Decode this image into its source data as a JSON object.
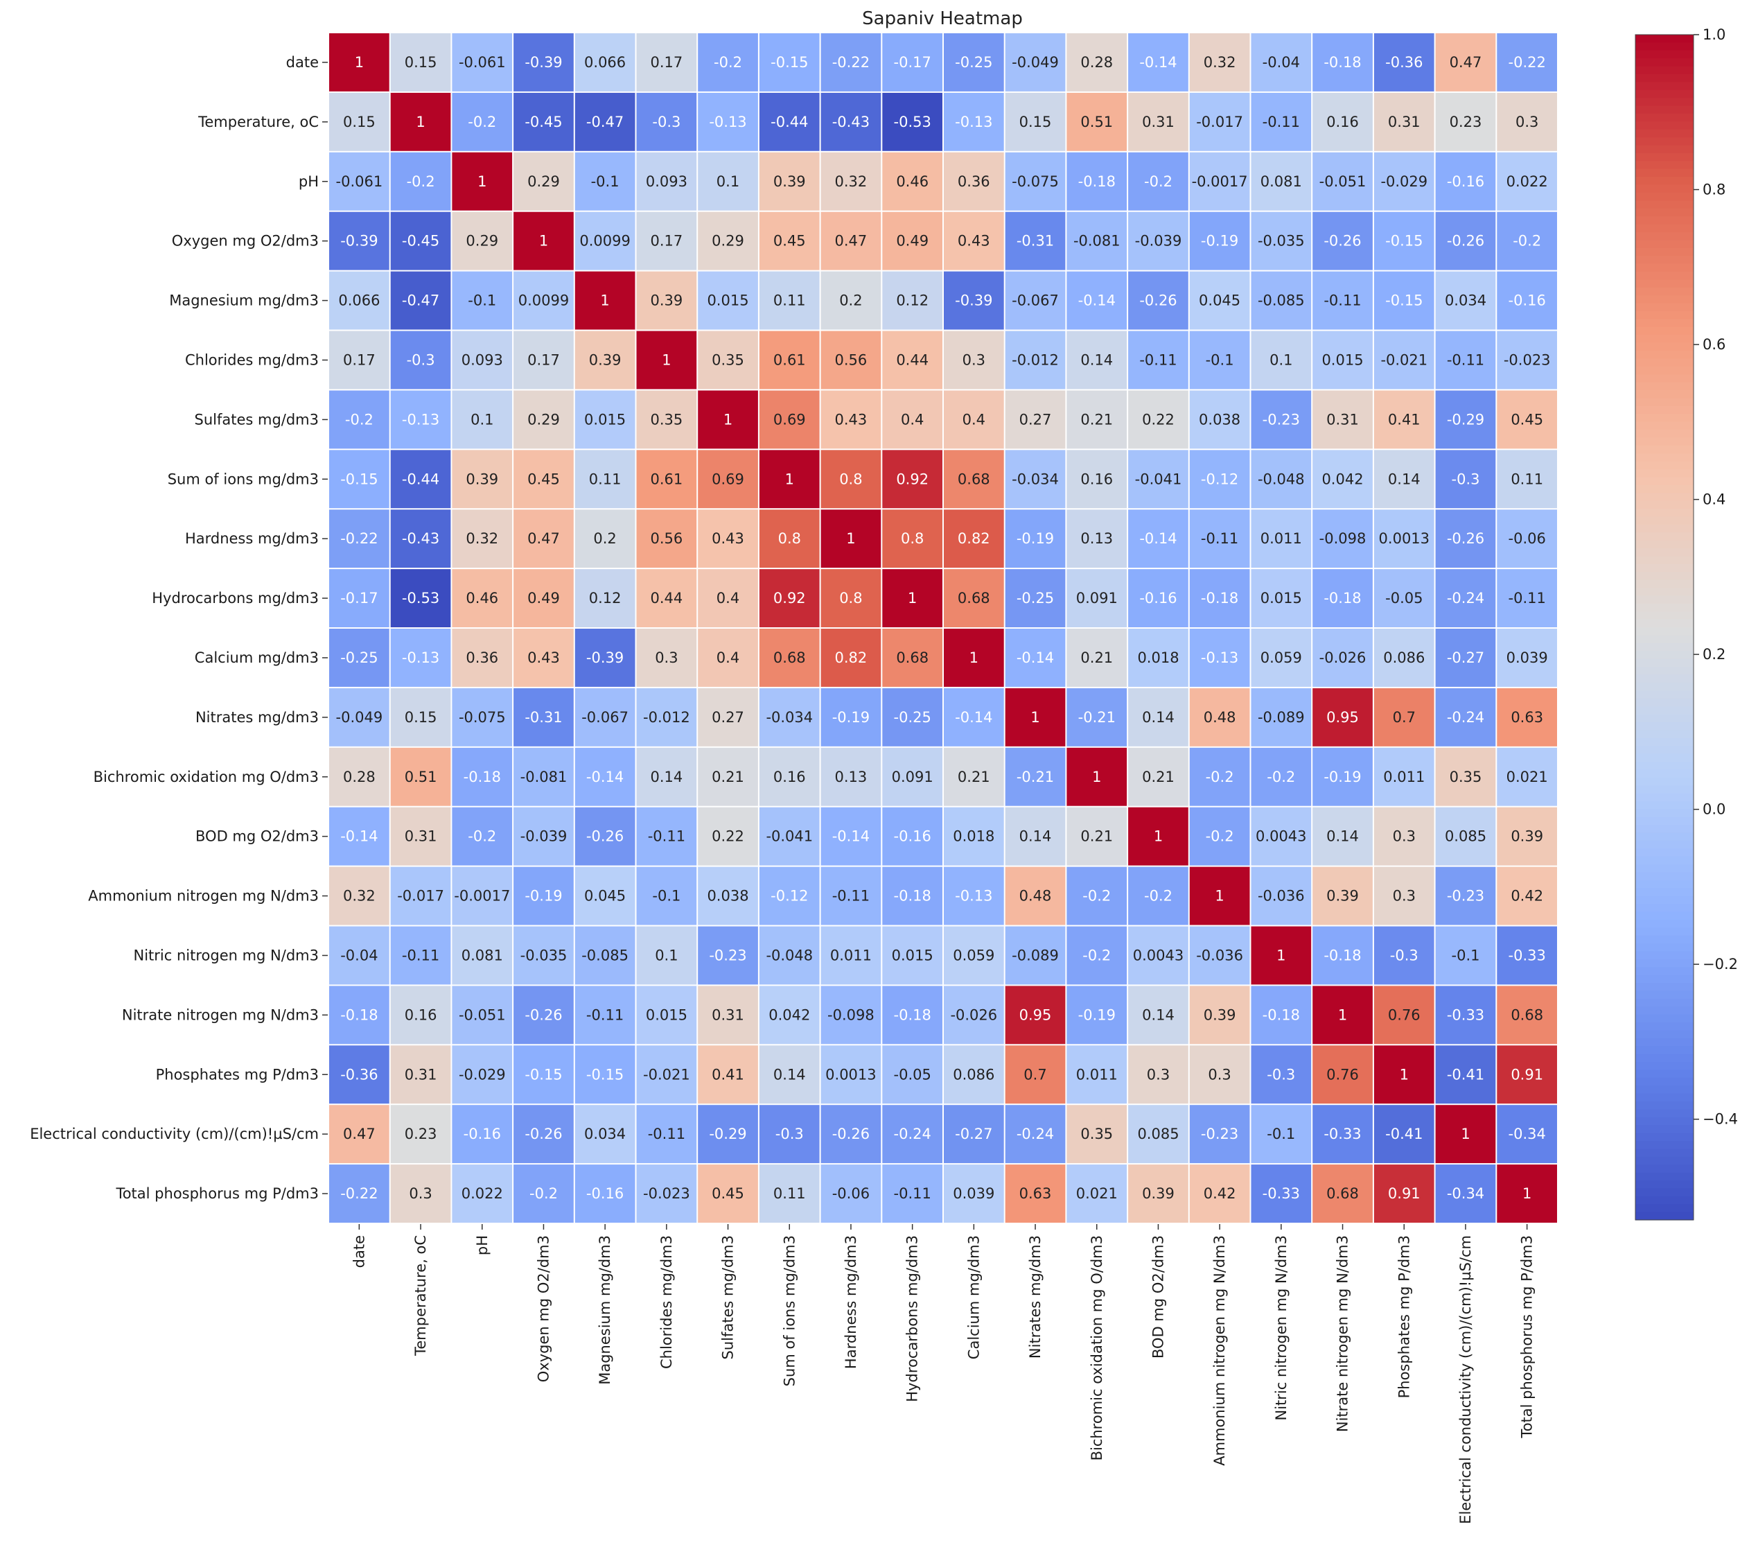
{
  "chart_data": {
    "type": "heatmap",
    "title": "Sapaniv Heatmap",
    "labels": [
      "date",
      "Temperature, oC",
      "pH",
      "Oxygen mg O2/dm3",
      "Magnesium mg/dm3",
      "Chlorides mg/dm3",
      "Sulfates mg/dm3",
      "Sum of ions mg/dm3",
      "Hardness mg/dm3",
      "Hydrocarbons mg/dm3",
      "Calcium mg/dm3",
      "Nitrates mg/dm3",
      "Bichromic oxidation mg O/dm3",
      "BOD mg O2/dm3",
      "Ammonium nitrogen mg N/dm3",
      "Nitric nitrogen mg N/dm3",
      "Nitrate nitrogen mg N/dm3",
      "Phosphates mg P/dm3",
      "Electrical conductivity (cm)/(cm)!µS/cm",
      "Total phosphorus mg P/dm3"
    ],
    "matrix": [
      [
        "1",
        "0.15",
        "-0.061",
        "-0.39",
        "0.066",
        "0.17",
        "-0.2",
        "-0.15",
        "-0.22",
        "-0.17",
        "-0.25",
        "-0.049",
        "0.28",
        "-0.14",
        "0.32",
        "-0.04",
        "-0.18",
        "-0.36",
        "0.47",
        "-0.22"
      ],
      [
        "0.15",
        "1",
        "-0.2",
        "-0.45",
        "-0.47",
        "-0.3",
        "-0.13",
        "-0.44",
        "-0.43",
        "-0.53",
        "-0.13",
        "0.15",
        "0.51",
        "0.31",
        "-0.017",
        "-0.11",
        "0.16",
        "0.31",
        "0.23",
        "0.3"
      ],
      [
        "-0.061",
        "-0.2",
        "1",
        "0.29",
        "-0.1",
        "0.093",
        "0.1",
        "0.39",
        "0.32",
        "0.46",
        "0.36",
        "-0.075",
        "-0.18",
        "-0.2",
        "-0.0017",
        "0.081",
        "-0.051",
        "-0.029",
        "-0.16",
        "0.022"
      ],
      [
        "-0.39",
        "-0.45",
        "0.29",
        "1",
        "0.0099",
        "0.17",
        "0.29",
        "0.45",
        "0.47",
        "0.49",
        "0.43",
        "-0.31",
        "-0.081",
        "-0.039",
        "-0.19",
        "-0.035",
        "-0.26",
        "-0.15",
        "-0.26",
        "-0.2"
      ],
      [
        "0.066",
        "-0.47",
        "-0.1",
        "0.0099",
        "1",
        "0.39",
        "0.015",
        "0.11",
        "0.2",
        "0.12",
        "-0.39",
        "-0.067",
        "-0.14",
        "-0.26",
        "0.045",
        "-0.085",
        "-0.11",
        "-0.15",
        "0.034",
        "-0.16"
      ],
      [
        "0.17",
        "-0.3",
        "0.093",
        "0.17",
        "0.39",
        "1",
        "0.35",
        "0.61",
        "0.56",
        "0.44",
        "0.3",
        "-0.012",
        "0.14",
        "-0.11",
        "-0.1",
        "0.1",
        "0.015",
        "-0.021",
        "-0.11",
        "-0.023"
      ],
      [
        "-0.2",
        "-0.13",
        "0.1",
        "0.29",
        "0.015",
        "0.35",
        "1",
        "0.69",
        "0.43",
        "0.4",
        "0.4",
        "0.27",
        "0.21",
        "0.22",
        "0.038",
        "-0.23",
        "0.31",
        "0.41",
        "-0.29",
        "0.45"
      ],
      [
        "-0.15",
        "-0.44",
        "0.39",
        "0.45",
        "0.11",
        "0.61",
        "0.69",
        "1",
        "0.8",
        "0.92",
        "0.68",
        "-0.034",
        "0.16",
        "-0.041",
        "-0.12",
        "-0.048",
        "0.042",
        "0.14",
        "-0.3",
        "0.11"
      ],
      [
        "-0.22",
        "-0.43",
        "0.32",
        "0.47",
        "0.2",
        "0.56",
        "0.43",
        "0.8",
        "1",
        "0.8",
        "0.82",
        "-0.19",
        "0.13",
        "-0.14",
        "-0.11",
        "0.011",
        "-0.098",
        "0.0013",
        "-0.26",
        "-0.06"
      ],
      [
        "-0.17",
        "-0.53",
        "0.46",
        "0.49",
        "0.12",
        "0.44",
        "0.4",
        "0.92",
        "0.8",
        "1",
        "0.68",
        "-0.25",
        "0.091",
        "-0.16",
        "-0.18",
        "0.015",
        "-0.18",
        "-0.05",
        "-0.24",
        "-0.11"
      ],
      [
        "-0.25",
        "-0.13",
        "0.36",
        "0.43",
        "-0.39",
        "0.3",
        "0.4",
        "0.68",
        "0.82",
        "0.68",
        "1",
        "-0.14",
        "0.21",
        "0.018",
        "-0.13",
        "0.059",
        "-0.026",
        "0.086",
        "-0.27",
        "0.039"
      ],
      [
        "-0.049",
        "0.15",
        "-0.075",
        "-0.31",
        "-0.067",
        "-0.012",
        "0.27",
        "-0.034",
        "-0.19",
        "-0.25",
        "-0.14",
        "1",
        "-0.21",
        "0.14",
        "0.48",
        "-0.089",
        "0.95",
        "0.7",
        "-0.24",
        "0.63"
      ],
      [
        "0.28",
        "0.51",
        "-0.18",
        "-0.081",
        "-0.14",
        "0.14",
        "0.21",
        "0.16",
        "0.13",
        "0.091",
        "0.21",
        "-0.21",
        "1",
        "0.21",
        "-0.2",
        "-0.2",
        "-0.19",
        "0.011",
        "0.35",
        "0.021"
      ],
      [
        "-0.14",
        "0.31",
        "-0.2",
        "-0.039",
        "-0.26",
        "-0.11",
        "0.22",
        "-0.041",
        "-0.14",
        "-0.16",
        "0.018",
        "0.14",
        "0.21",
        "1",
        "-0.2",
        "0.0043",
        "0.14",
        "0.3",
        "0.085",
        "0.39"
      ],
      [
        "0.32",
        "-0.017",
        "-0.0017",
        "-0.19",
        "0.045",
        "-0.1",
        "0.038",
        "-0.12",
        "-0.11",
        "-0.18",
        "-0.13",
        "0.48",
        "-0.2",
        "-0.2",
        "1",
        "-0.036",
        "0.39",
        "0.3",
        "-0.23",
        "0.42"
      ],
      [
        "-0.04",
        "-0.11",
        "0.081",
        "-0.035",
        "-0.085",
        "0.1",
        "-0.23",
        "-0.048",
        "0.011",
        "0.015",
        "0.059",
        "-0.089",
        "-0.2",
        "0.0043",
        "-0.036",
        "1",
        "-0.18",
        "-0.3",
        "-0.1",
        "-0.33"
      ],
      [
        "-0.18",
        "0.16",
        "-0.051",
        "-0.26",
        "-0.11",
        "0.015",
        "0.31",
        "0.042",
        "-0.098",
        "-0.18",
        "-0.026",
        "0.95",
        "-0.19",
        "0.14",
        "0.39",
        "-0.18",
        "1",
        "0.76",
        "-0.33",
        "0.68"
      ],
      [
        "-0.36",
        "0.31",
        "-0.029",
        "-0.15",
        "-0.15",
        "-0.021",
        "0.41",
        "0.14",
        "0.0013",
        "-0.05",
        "0.086",
        "0.7",
        "0.011",
        "0.3",
        "0.3",
        "-0.3",
        "0.76",
        "1",
        "-0.41",
        "0.91"
      ],
      [
        "0.47",
        "0.23",
        "-0.16",
        "-0.26",
        "0.034",
        "-0.11",
        "-0.29",
        "-0.3",
        "-0.26",
        "-0.24",
        "-0.27",
        "-0.24",
        "0.35",
        "0.085",
        "-0.23",
        "-0.1",
        "-0.33",
        "-0.41",
        "1",
        "-0.34"
      ],
      [
        "-0.22",
        "0.3",
        "0.022",
        "-0.2",
        "-0.16",
        "-0.023",
        "0.45",
        "0.11",
        "-0.06",
        "-0.11",
        "0.039",
        "0.63",
        "0.021",
        "0.39",
        "0.42",
        "-0.33",
        "0.68",
        "0.91",
        "-0.34",
        "1"
      ]
    ],
    "colorbar": {
      "colormap": "coolwarm",
      "vmin": -0.53,
      "vmax": 1.0,
      "ticks": [
        "1.0",
        "0.8",
        "0.6",
        "0.4",
        "0.2",
        "0.0",
        "−0.2",
        "−0.4"
      ]
    },
    "xlabel": "",
    "ylabel": ""
  }
}
